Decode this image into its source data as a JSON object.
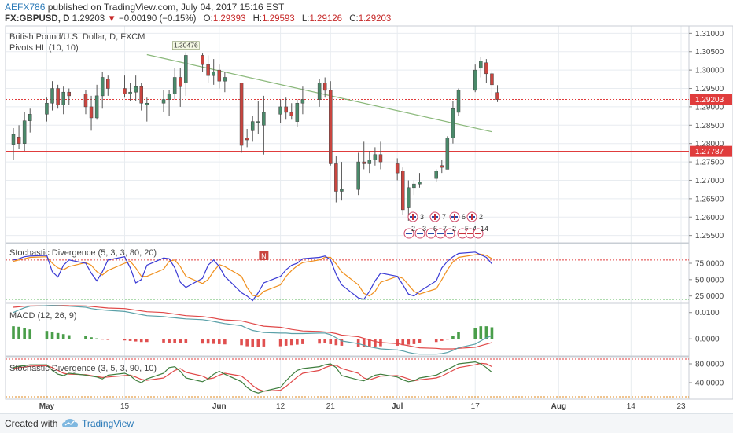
{
  "header": {
    "username": "AEFX786",
    "published_text": "published on TradingView.com, July 04, 2017 15:16 EST",
    "symbol": "FX:GBPUSD, D",
    "last": "1.29203",
    "change_arrow": "▼",
    "change": "−0.00190 (−0.15%)",
    "open_label": "O:",
    "open": "1.29393",
    "high_label": "H:",
    "high": "1.29593",
    "low_label": "L:",
    "low": "1.29126",
    "close_label": "C:",
    "close": "1.29203"
  },
  "footer": {
    "created_text": "Created with",
    "brand": "TradingView",
    "logo_icon": "tradingview-cloud-icon"
  },
  "colors": {
    "up": "#4a8a6a",
    "down": "#c9453f",
    "trendline": "#8ab87a",
    "support": "#e03c3c",
    "stoch_k": "#3a3ad4",
    "stoch_d": "#f0901e",
    "macd_line": "#5aa0a8",
    "signal_line": "#e04848",
    "hist_up": "#4a9e4a",
    "hist_down": "#e05050",
    "stoch2_k": "#3e7e3e",
    "stoch2_d": "#e04848",
    "grid": "#e8ecf0"
  },
  "chart_data": {
    "type": "candlestick",
    "title": "British Pound/U.S. Dollar, D, FXCM",
    "indicator": "Pivots HL (10, 10)",
    "pivot_label": "1.30476",
    "y_ticks": [
      "1.31000",
      "1.30500",
      "1.30000",
      "1.29500",
      "1.29000",
      "1.28500",
      "1.28000",
      "1.27500",
      "1.27000",
      "1.26500",
      "1.26000",
      "1.25500"
    ],
    "ylim": [
      1.253,
      1.312
    ],
    "last_price_label": "1.29203",
    "support_label": "1.27787",
    "support_level": 1.27787,
    "trendline": {
      "from": [
        "2017-05-19",
        1.3042
      ],
      "to": [
        "2017-07-20",
        1.2832
      ]
    },
    "x_labels": [
      "May",
      "15",
      "Jun",
      "12",
      "21",
      "Jul",
      "17",
      "Aug",
      "14",
      "23"
    ],
    "x_label_dates": [
      "2017-05-01",
      "2017-05-15",
      "2017-06-01",
      "2017-06-12",
      "2017-06-21",
      "2017-07-03",
      "2017-07-17",
      "2017-08-01",
      "2017-08-14",
      "2017-08-23"
    ],
    "xlim": [
      "2017-04-25",
      "2017-08-23"
    ],
    "candles": [
      {
        "date": "2017-04-25",
        "o": 1.2798,
        "h": 1.2842,
        "l": 1.2755,
        "c": 1.2825
      },
      {
        "date": "2017-04-26",
        "o": 1.2818,
        "h": 1.285,
        "l": 1.2785,
        "c": 1.28
      },
      {
        "date": "2017-04-27",
        "o": 1.28,
        "h": 1.2885,
        "l": 1.278,
        "c": 1.2862
      },
      {
        "date": "2017-04-28",
        "o": 1.2862,
        "h": 1.2895,
        "l": 1.283,
        "c": 1.288
      },
      {
        "date": "2017-05-01",
        "o": 1.288,
        "h": 1.2925,
        "l": 1.286,
        "c": 1.291
      },
      {
        "date": "2017-05-02",
        "o": 1.291,
        "h": 1.297,
        "l": 1.289,
        "c": 1.295
      },
      {
        "date": "2017-05-03",
        "o": 1.295,
        "h": 1.296,
        "l": 1.2895,
        "c": 1.2905
      },
      {
        "date": "2017-05-04",
        "o": 1.2905,
        "h": 1.2955,
        "l": 1.288,
        "c": 1.294
      },
      {
        "date": "2017-05-05",
        "o": 1.294,
        "h": 1.295,
        "l": 1.2905,
        "c": 1.293
      },
      {
        "date": "2017-05-08",
        "o": 1.2935,
        "h": 1.2945,
        "l": 1.288,
        "c": 1.29
      },
      {
        "date": "2017-05-09",
        "o": 1.29,
        "h": 1.293,
        "l": 1.2835,
        "c": 1.287
      },
      {
        "date": "2017-05-10",
        "o": 1.287,
        "h": 1.296,
        "l": 1.2865,
        "c": 1.293
      },
      {
        "date": "2017-05-11",
        "o": 1.293,
        "h": 1.2995,
        "l": 1.2895,
        "c": 1.298
      },
      {
        "date": "2017-05-12",
        "o": 1.2975,
        "h": 1.2985,
        "l": 1.293,
        "c": 1.295
      },
      {
        "date": "2017-05-15",
        "o": 1.295,
        "h": 1.2985,
        "l": 1.2925,
        "c": 1.2935
      },
      {
        "date": "2017-05-16",
        "o": 1.2935,
        "h": 1.2965,
        "l": 1.2915,
        "c": 1.294
      },
      {
        "date": "2017-05-17",
        "o": 1.294,
        "h": 1.2985,
        "l": 1.2915,
        "c": 1.2955
      },
      {
        "date": "2017-05-18",
        "o": 1.2955,
        "h": 1.2965,
        "l": 1.289,
        "c": 1.291
      },
      {
        "date": "2017-05-19",
        "o": 1.2905,
        "h": 1.2925,
        "l": 1.286,
        "c": 1.291
      },
      {
        "date": "2017-05-22",
        "o": 1.291,
        "h": 1.2945,
        "l": 1.2885,
        "c": 1.292
      },
      {
        "date": "2017-05-23",
        "o": 1.292,
        "h": 1.2945,
        "l": 1.2875,
        "c": 1.2935
      },
      {
        "date": "2017-05-24",
        "o": 1.2935,
        "h": 1.3005,
        "l": 1.292,
        "c": 1.298
      },
      {
        "date": "2017-05-25",
        "o": 1.298,
        "h": 1.3005,
        "l": 1.29,
        "c": 1.2955
      },
      {
        "date": "2017-05-26",
        "o": 1.2965,
        "h": 1.3048,
        "l": 1.293,
        "c": 1.304
      },
      {
        "date": "2017-05-29",
        "o": 1.304,
        "h": 1.3045,
        "l": 1.2995,
        "c": 1.3015
      },
      {
        "date": "2017-05-30",
        "o": 1.3015,
        "h": 1.304,
        "l": 1.2965,
        "c": 1.2985
      },
      {
        "date": "2017-05-31",
        "o": 1.2985,
        "h": 1.303,
        "l": 1.296,
        "c": 1.2995
      },
      {
        "date": "2017-06-01",
        "o": 1.3,
        "h": 1.3015,
        "l": 1.295,
        "c": 1.297
      },
      {
        "date": "2017-06-02",
        "o": 1.297,
        "h": 1.2995,
        "l": 1.294,
        "c": 1.298
      },
      {
        "date": "2017-06-05",
        "o": 1.2965,
        "h": 1.2965,
        "l": 1.2775,
        "c": 1.2795
      },
      {
        "date": "2017-06-06",
        "o": 1.2815,
        "h": 1.284,
        "l": 1.279,
        "c": 1.281
      },
      {
        "date": "2017-06-07",
        "o": 1.2835,
        "h": 1.2875,
        "l": 1.2805,
        "c": 1.286
      },
      {
        "date": "2017-06-08",
        "o": 1.286,
        "h": 1.2915,
        "l": 1.2825,
        "c": 1.286
      },
      {
        "date": "2017-06-09",
        "o": 1.285,
        "h": 1.293,
        "l": 1.277,
        "c": 1.2885
      },
      {
        "date": "2017-06-12",
        "o": 1.288,
        "h": 1.292,
        "l": 1.2855,
        "c": 1.29
      },
      {
        "date": "2017-06-13",
        "o": 1.29,
        "h": 1.2925,
        "l": 1.2865,
        "c": 1.2885
      },
      {
        "date": "2017-06-14",
        "o": 1.2885,
        "h": 1.291,
        "l": 1.2865,
        "c": 1.2875
      },
      {
        "date": "2017-06-15",
        "o": 1.286,
        "h": 1.292,
        "l": 1.2845,
        "c": 1.291
      },
      {
        "date": "2017-06-16",
        "o": 1.291,
        "h": 1.2955,
        "l": 1.288,
        "c": 1.292
      },
      {
        "date": "2017-06-19",
        "o": 1.292,
        "h": 1.2975,
        "l": 1.29,
        "c": 1.2965
      },
      {
        "date": "2017-06-20",
        "o": 1.2965,
        "h": 1.298,
        "l": 1.2925,
        "c": 1.2945
      },
      {
        "date": "2017-06-21",
        "o": 1.2945,
        "h": 1.297,
        "l": 1.274,
        "c": 1.2745
      },
      {
        "date": "2017-06-22",
        "o": 1.2745,
        "h": 1.2765,
        "l": 1.264,
        "c": 1.267
      },
      {
        "date": "2017-06-23",
        "o": 1.267,
        "h": 1.275,
        "l": 1.2645,
        "c": 1.2675
      },
      {
        "date": "2017-06-26",
        "o": 1.2675,
        "h": 1.2775,
        "l": 1.266,
        "c": 1.275
      },
      {
        "date": "2017-06-27",
        "o": 1.275,
        "h": 1.2805,
        "l": 1.273,
        "c": 1.2745
      },
      {
        "date": "2017-06-28",
        "o": 1.2745,
        "h": 1.278,
        "l": 1.272,
        "c": 1.2755
      },
      {
        "date": "2017-06-29",
        "o": 1.2755,
        "h": 1.279,
        "l": 1.274,
        "c": 1.277
      },
      {
        "date": "2017-06-30",
        "o": 1.277,
        "h": 1.2805,
        "l": 1.273,
        "c": 1.275
      },
      {
        "date": "2017-07-03",
        "o": 1.2745,
        "h": 1.276,
        "l": 1.27,
        "c": 1.272
      },
      {
        "date": "2017-07-04",
        "o": 1.2725,
        "h": 1.2735,
        "l": 1.2605,
        "c": 1.262
      },
      {
        "date": "2017-07-05",
        "o": 1.2625,
        "h": 1.27,
        "l": 1.259,
        "c": 1.268
      },
      {
        "date": "2017-07-06",
        "o": 1.268,
        "h": 1.27,
        "l": 1.266,
        "c": 1.269
      },
      {
        "date": "2017-07-07",
        "o": 1.269,
        "h": 1.272,
        "l": 1.268,
        "c": 1.2695
      },
      {
        "date": "2017-07-10",
        "o": 1.2705,
        "h": 1.273,
        "l": 1.2695,
        "c": 1.2725
      },
      {
        "date": "2017-07-11",
        "o": 1.274,
        "h": 1.2755,
        "l": 1.272,
        "c": 1.2735
      },
      {
        "date": "2017-07-12",
        "o": 1.273,
        "h": 1.282,
        "l": 1.273,
        "c": 1.2815
      },
      {
        "date": "2017-07-13",
        "o": 1.2815,
        "h": 1.2915,
        "l": 1.28,
        "c": 1.2895
      },
      {
        "date": "2017-07-14",
        "o": 1.2885,
        "h": 1.295,
        "l": 1.2875,
        "c": 1.2945
      },
      {
        "date": "2017-07-17",
        "o": 1.2945,
        "h": 1.3015,
        "l": 1.294,
        "c": 1.3
      },
      {
        "date": "2017-07-18",
        "o": 1.3005,
        "h": 1.3035,
        "l": 1.298,
        "c": 1.3025
      },
      {
        "date": "2017-07-19",
        "o": 1.302,
        "h": 1.303,
        "l": 1.2965,
        "c": 1.299
      },
      {
        "date": "2017-07-20",
        "o": 1.299,
        "h": 1.2998,
        "l": 1.293,
        "c": 1.296
      },
      {
        "date": "2017-07-21",
        "o": 1.2939,
        "h": 1.2959,
        "l": 1.2913,
        "c": 1.292
      }
    ],
    "events_row1": [
      "3",
      "7",
      "6",
      "2"
    ],
    "events_row2": [
      "2",
      "3",
      "6",
      "7",
      "2",
      "5",
      "4",
      "14"
    ],
    "panes": [
      {
        "name": "Stochastic Divergence (5, 3, 3, 80, 20)",
        "ylim": [
          15,
          105
        ],
        "y_ticks": [
          "75.0000",
          "50.0000",
          "25.0000"
        ],
        "y_tick_values": [
          75,
          50,
          25
        ],
        "hlines": [
          {
            "value": 80,
            "color": "#e03c3c"
          },
          {
            "value": 20,
            "color": "#2aa02a"
          }
        ],
        "marker": "N",
        "k": [
          80,
          82,
          85,
          86,
          87,
          62,
          54,
          72,
          80,
          75,
          60,
          48,
          62,
          80,
          85,
          68,
          45,
          50,
          72,
          83,
          82,
          68,
          46,
          38,
          52,
          72,
          80,
          70,
          55,
          30,
          25,
          18,
          30,
          45,
          55,
          65,
          72,
          75,
          82,
          84,
          86,
          80,
          58,
          42,
          22,
          20,
          32,
          48,
          60,
          55,
          42,
          28,
          25,
          32,
          48,
          68,
          78,
          85,
          90,
          92,
          88,
          84,
          74
        ],
        "d": [
          78,
          80,
          82,
          84,
          85,
          75,
          68,
          65,
          70,
          76,
          72,
          62,
          57,
          64,
          75,
          78,
          68,
          55,
          55,
          66,
          78,
          80,
          70,
          55,
          44,
          50,
          63,
          73,
          70,
          55,
          38,
          26,
          24,
          32,
          42,
          55,
          64,
          71,
          76,
          80,
          84,
          84,
          74,
          62,
          42,
          29,
          25,
          32,
          46,
          55,
          52,
          42,
          32,
          28,
          36,
          50,
          65,
          77,
          84,
          88,
          89,
          87,
          82
        ]
      },
      {
        "name": "MACD (12, 26, 9)",
        "ylim": [
          -0.0065,
          0.0135
        ],
        "y_ticks": [
          "0.0100",
          "0.0000"
        ],
        "y_tick_values": [
          0.01,
          0.0
        ],
        "macd": [
          0.01,
          0.011,
          0.0118,
          0.0124,
          0.0126,
          0.0127,
          0.0126,
          0.0125,
          0.0124,
          0.012,
          0.0115,
          0.0112,
          0.011,
          0.0108,
          0.0104,
          0.01,
          0.0096,
          0.0092,
          0.0088,
          0.0085,
          0.0082,
          0.008,
          0.0078,
          0.0076,
          0.0073,
          0.007,
          0.0066,
          0.0062,
          0.0058,
          0.005,
          0.004,
          0.0032,
          0.0028,
          0.0024,
          0.0022,
          0.0022,
          0.002,
          0.002,
          0.002,
          0.0022,
          0.0022,
          0.0016,
          0.0004,
          -0.0008,
          -0.0018,
          -0.0024,
          -0.003,
          -0.0034,
          -0.0038,
          -0.0042,
          -0.0046,
          -0.0052,
          -0.0056,
          -0.0058,
          -0.0058,
          -0.0056,
          -0.0052,
          -0.0044,
          -0.0034,
          -0.002,
          -0.0008,
          0.0004,
          0.0012
        ],
        "signal": [
          0.012,
          0.0122,
          0.0124,
          0.0125,
          0.0126,
          0.0127,
          0.0127,
          0.0127,
          0.0126,
          0.0125,
          0.0123,
          0.0121,
          0.0119,
          0.0117,
          0.0115,
          0.0112,
          0.0109,
          0.0106,
          0.0103,
          0.01,
          0.0097,
          0.0094,
          0.0091,
          0.0088,
          0.0085,
          0.0082,
          0.0079,
          0.0075,
          0.0072,
          0.0068,
          0.0063,
          0.0058,
          0.0053,
          0.0048,
          0.0044,
          0.004,
          0.0036,
          0.0033,
          0.003,
          0.0028,
          0.0026,
          0.0024,
          0.002,
          0.0014,
          0.0008,
          0.0002,
          -0.0004,
          -0.001,
          -0.0014,
          -0.0018,
          -0.0022,
          -0.0026,
          -0.003,
          -0.0034,
          -0.0036,
          -0.0038,
          -0.0038,
          -0.0038,
          -0.0036,
          -0.0032,
          -0.0026,
          -0.002,
          -0.0014
        ],
        "hist": [
          0.0048,
          0.0046,
          0.004,
          0.0036,
          0.003,
          0.0026,
          0.0022,
          0.0018,
          0.0014,
          0.001,
          0.0006,
          0.0002,
          -0.0002,
          -0.0004,
          -0.0006,
          -0.0008,
          -0.001,
          -0.0012,
          -0.0012,
          -0.0014,
          -0.0015,
          -0.0016,
          -0.0016,
          -0.0017,
          -0.0018,
          -0.0018,
          -0.0019,
          -0.002,
          -0.0021,
          -0.0024,
          -0.0028,
          -0.003,
          -0.003,
          -0.0029,
          -0.0028,
          -0.0026,
          -0.0024,
          -0.0022,
          -0.002,
          -0.0018,
          -0.0016,
          -0.002,
          -0.0024,
          -0.0026,
          -0.003,
          -0.0032,
          -0.0032,
          -0.003,
          -0.0028,
          -0.0026,
          -0.0024,
          -0.0022,
          -0.002,
          -0.0016,
          -0.0012,
          -0.0008,
          -0.0002,
          0.001,
          0.0026,
          0.004,
          0.0048,
          0.0048,
          0.0044
        ]
      },
      {
        "name": "Stochastic Divergence (3, 5, 3, 90, 10)",
        "ylim": [
          5,
          95
        ],
        "y_ticks": [
          "80.0000",
          "40.0000"
        ],
        "y_tick_values": [
          80,
          40
        ],
        "hlines": [
          {
            "value": 90,
            "color": "#e03c3c"
          },
          {
            "value": 10,
            "color": "#e08a1e"
          }
        ],
        "k": [
          72,
          75,
          76,
          78,
          78,
          66,
          58,
          55,
          60,
          56,
          54,
          52,
          48,
          56,
          60,
          55,
          45,
          40,
          48,
          60,
          72,
          74,
          64,
          50,
          42,
          48,
          58,
          64,
          58,
          42,
          30,
          22,
          18,
          22,
          30,
          44,
          56,
          66,
          70,
          74,
          78,
          80,
          72,
          55,
          46,
          44,
          50,
          56,
          58,
          52,
          46,
          42,
          44,
          50,
          56,
          62,
          68,
          74,
          80,
          84,
          80,
          72,
          62
        ],
        "d": [
          70,
          72,
          73,
          75,
          76,
          72,
          66,
          60,
          58,
          57,
          55,
          53,
          51,
          52,
          55,
          56,
          52,
          47,
          45,
          50,
          58,
          66,
          70,
          62,
          54,
          48,
          50,
          56,
          60,
          54,
          45,
          34,
          26,
          22,
          24,
          32,
          42,
          52,
          60,
          66,
          72,
          76,
          77,
          70,
          60,
          50,
          46,
          50,
          54,
          55,
          52,
          48,
          44,
          46,
          50,
          54,
          60,
          66,
          72,
          78,
          81,
          80,
          74
        ]
      }
    ]
  }
}
